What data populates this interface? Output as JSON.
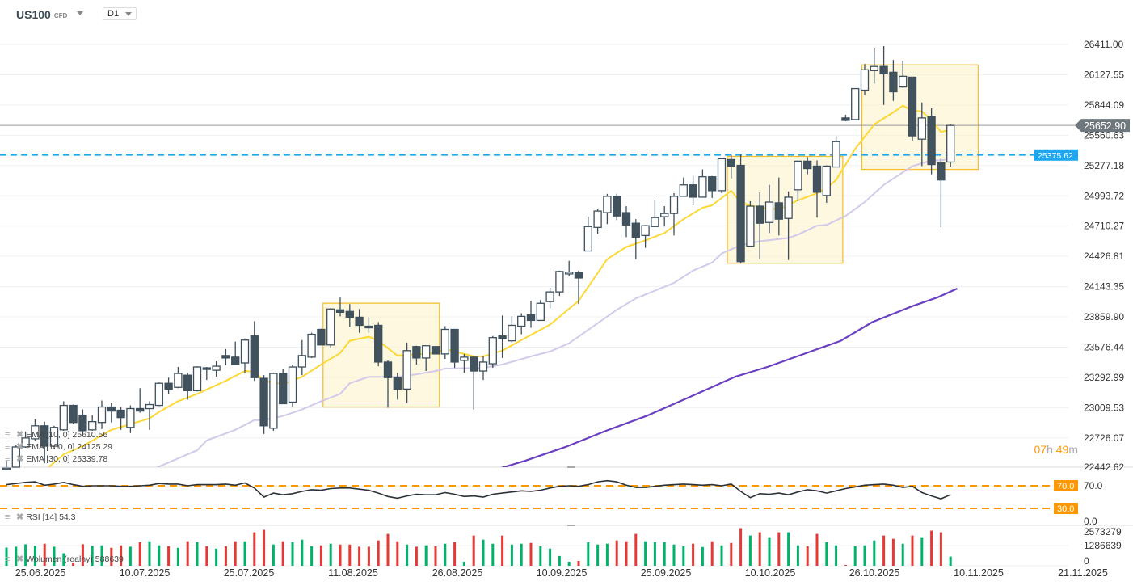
{
  "header": {
    "symbol": "US100",
    "instrument_type": "CFD",
    "timeframe": "D1"
  },
  "countdown": {
    "hours": "07",
    "hours_unit": "h",
    "minutes": "49",
    "minutes_unit": "m"
  },
  "legends": {
    "ema10": "EMA [10, 0] 25610.56",
    "ema100": "EMA [100, 0] 24125.29",
    "ema30": "EMA [30, 0] 25339.78",
    "rsi": "RSI [14] 54.3",
    "volume": "Wolumen (realny) 588639"
  },
  "colors": {
    "candle_stroke": "#3d4f5c",
    "bear_fill": "#43535e",
    "bull_fill": "#ffffff",
    "ema10": "#fdd835",
    "ema30": "#d3c9ea",
    "ema100": "#6a3fc1",
    "support_line": "#1ea7f0",
    "last_price": "#6e777c",
    "rsi_levels": "#ff9800",
    "rsi_line": "#2b3238",
    "volume_up": "#00b36b",
    "volume_down": "#e53935",
    "highlight_fill": "#fdf3c8",
    "highlight_border": "#f5c030"
  },
  "chart_data": {
    "type": "candlestick",
    "price_axis": {
      "ticks": [
        "26411.00",
        "26127.55",
        "25844.09",
        "25560.63",
        "25277.18",
        "24993.72",
        "24710.27",
        "24426.81",
        "24143.35",
        "23859.90",
        "23576.44",
        "23292.99",
        "23009.53",
        "22726.07",
        "22442.62"
      ]
    },
    "x_axis": {
      "ticks": [
        "25.06.2025",
        "10.07.2025",
        "25.07.2025",
        "11.08.2025",
        "26.08.2025",
        "10.09.2025",
        "25.09.2025",
        "10.10.2025",
        "26.10.2025",
        "10.11.2025",
        "21.11.2025"
      ]
    },
    "last_price": {
      "value": 25652.9,
      "label": "25652.90"
    },
    "support_level": {
      "value": 25375.62,
      "label": "25375.62",
      "style": "dashed"
    },
    "candles_ohlc": [
      [
        22412,
        22512,
        22397,
        22443
      ],
      [
        22420,
        22657,
        22412,
        22642
      ],
      [
        22642,
        22787,
        22634,
        22726
      ],
      [
        22718,
        22902,
        22703,
        22840
      ],
      [
        22840,
        22879,
        22489,
        22649
      ],
      [
        22649,
        22840,
        22626,
        22825
      ],
      [
        22802,
        23070,
        22794,
        23031
      ],
      [
        23031,
        23039,
        22856,
        22871
      ],
      [
        22940,
        22993,
        22749,
        22794
      ],
      [
        22802,
        22940,
        22794,
        22879
      ],
      [
        22871,
        23077,
        22810,
        23016
      ],
      [
        23016,
        23054,
        22871,
        22978
      ],
      [
        22986,
        23016,
        22802,
        22917
      ],
      [
        22825,
        23031,
        22772,
        23001
      ],
      [
        23001,
        23192,
        22963,
        22978
      ],
      [
        23001,
        23070,
        22802,
        23039
      ],
      [
        23031,
        23246,
        23024,
        23238
      ],
      [
        23238,
        23291,
        23139,
        23184
      ],
      [
        23200,
        23391,
        23192,
        23330
      ],
      [
        23314,
        23337,
        23085,
        23169
      ],
      [
        23169,
        23398,
        23161,
        23391
      ],
      [
        23383,
        23391,
        23269,
        23368
      ],
      [
        23360,
        23444,
        23299,
        23398
      ],
      [
        23498,
        23559,
        23406,
        23475
      ],
      [
        23483,
        23628,
        23414,
        23414
      ],
      [
        23429,
        23658,
        23330,
        23643
      ],
      [
        23681,
        23819,
        23261,
        23291
      ],
      [
        23284,
        23314,
        22764,
        22840
      ],
      [
        22817,
        23337,
        22794,
        23330
      ],
      [
        23330,
        23376,
        23047,
        23047
      ],
      [
        23062,
        23414,
        23016,
        23391
      ],
      [
        23391,
        23643,
        23314,
        23498
      ],
      [
        23483,
        23712,
        23475,
        23697
      ],
      [
        23743,
        23750,
        23597,
        23597
      ],
      [
        23597,
        23941,
        23567,
        23934
      ],
      [
        23926,
        24041,
        23865,
        23903
      ],
      [
        23911,
        23980,
        23766,
        23857
      ],
      [
        23857,
        23934,
        23712,
        23781
      ],
      [
        23773,
        23857,
        23712,
        23758
      ],
      [
        23781,
        23811,
        23398,
        23437
      ],
      [
        23437,
        23452,
        23009,
        23291
      ],
      [
        23291,
        23337,
        23085,
        23184
      ],
      [
        23184,
        23620,
        23054,
        23544
      ],
      [
        23582,
        23590,
        23414,
        23475
      ],
      [
        23475,
        23590,
        23353,
        23590
      ],
      [
        23582,
        23582,
        23513,
        23513
      ],
      [
        23513,
        23773,
        23467,
        23743
      ],
      [
        23743,
        23743,
        23383,
        23437
      ],
      [
        23452,
        23513,
        23337,
        23483
      ],
      [
        23483,
        23490,
        22993,
        23353
      ],
      [
        23353,
        23490,
        23269,
        23437
      ],
      [
        23421,
        23681,
        23383,
        23666
      ],
      [
        23681,
        23873,
        23475,
        23658
      ],
      [
        23636,
        23865,
        23620,
        23781
      ],
      [
        23773,
        23895,
        23697,
        23865
      ],
      [
        23880,
        24010,
        23758,
        23827
      ],
      [
        23827,
        24018,
        23827,
        23987
      ],
      [
        24003,
        24133,
        23941,
        24094
      ],
      [
        24094,
        24293,
        24056,
        24285
      ],
      [
        24262,
        24385,
        24240,
        24278
      ],
      [
        24278,
        24293,
        23980,
        24224
      ],
      [
        24477,
        24798,
        24477,
        24706
      ],
      [
        24698,
        24867,
        24637,
        24851
      ],
      [
        24836,
        25012,
        24729,
        24989
      ],
      [
        24989,
        25012,
        24767,
        24805
      ],
      [
        24836,
        24897,
        24607,
        24721
      ],
      [
        24737,
        24775,
        24400,
        24607
      ],
      [
        24622,
        24721,
        24507,
        24714
      ],
      [
        24706,
        24958,
        24706,
        24790
      ],
      [
        24798,
        24897,
        24706,
        24828
      ],
      [
        24828,
        25019,
        24622,
        24989
      ],
      [
        24989,
        25165,
        24989,
        25096
      ],
      [
        25096,
        25180,
        24905,
        24981
      ],
      [
        24981,
        25241,
        24981,
        25172
      ],
      [
        25172,
        25180,
        24974,
        25042
      ],
      [
        25042,
        25348,
        25019,
        25341
      ],
      [
        25333,
        25379,
        25157,
        25272
      ],
      [
        25279,
        25379,
        24362,
        24377
      ],
      [
        24522,
        24943,
        24522,
        24897
      ],
      [
        24897,
        25027,
        24400,
        24737
      ],
      [
        24744,
        25096,
        24645,
        24935
      ],
      [
        24928,
        25165,
        24622,
        24775
      ],
      [
        24782,
        25035,
        24392,
        24981
      ],
      [
        25050,
        25325,
        24943,
        25318
      ],
      [
        25318,
        25356,
        25195,
        25249
      ],
      [
        25272,
        25325,
        24790,
        25027
      ],
      [
        24997,
        25279,
        24928,
        25272
      ],
      [
        25264,
        25555,
        25264,
        25501
      ],
      [
        25723,
        25753,
        25692,
        25700
      ],
      [
        25708,
        25998,
        25708,
        25998
      ],
      [
        25983,
        26228,
        25937,
        26174
      ],
      [
        26166,
        26373,
        26044,
        26205
      ],
      [
        26205,
        26396,
        25845,
        26136
      ],
      [
        26151,
        26266,
        25883,
        25968
      ],
      [
        26013,
        26258,
        26006,
        26113
      ],
      [
        26105,
        26105,
        25509,
        25555
      ],
      [
        25524,
        25868,
        25272,
        25723
      ],
      [
        25738,
        25815,
        25195,
        25287
      ],
      [
        25302,
        25341,
        24698,
        25142
      ],
      [
        25310,
        25662,
        25264,
        25652.9
      ]
    ],
    "ema_lines": [
      {
        "name": "EMA [10, 0]",
        "points": [
          [
            4,
            22420
          ],
          [
            6,
            22572
          ],
          [
            8,
            22649
          ],
          [
            11,
            22802
          ],
          [
            15,
            22909
          ],
          [
            16,
            22970
          ],
          [
            18,
            23070
          ],
          [
            20,
            23139
          ],
          [
            23,
            23261
          ],
          [
            25,
            23353
          ],
          [
            26,
            23345
          ],
          [
            27,
            23261
          ],
          [
            29,
            23230
          ],
          [
            31,
            23299
          ],
          [
            33,
            23414
          ],
          [
            35,
            23521
          ],
          [
            36,
            23636
          ],
          [
            38,
            23674
          ],
          [
            39,
            23636
          ],
          [
            41,
            23498
          ],
          [
            45,
            23521
          ],
          [
            46,
            23559
          ],
          [
            49,
            23490
          ],
          [
            50,
            23490
          ],
          [
            52,
            23544
          ],
          [
            54,
            23643
          ],
          [
            57,
            23788
          ],
          [
            60,
            24010
          ],
          [
            63,
            24400
          ],
          [
            65,
            24515
          ],
          [
            67,
            24576
          ],
          [
            69,
            24645
          ],
          [
            71,
            24775
          ],
          [
            73,
            24882
          ],
          [
            74,
            24905
          ],
          [
            76,
            25042
          ],
          [
            77,
            24928
          ],
          [
            79,
            24882
          ],
          [
            81,
            24867
          ],
          [
            83,
            24951
          ],
          [
            85,
            25019
          ],
          [
            86,
            25065
          ],
          [
            87,
            25142
          ],
          [
            89,
            25432
          ],
          [
            91,
            25662
          ],
          [
            93,
            25776
          ],
          [
            94,
            25838
          ],
          [
            95,
            25792
          ],
          [
            96,
            25784
          ],
          [
            97,
            25700
          ],
          [
            98,
            25593
          ],
          [
            99,
            25610.56
          ]
        ]
      },
      {
        "name": "EMA [30, 0]",
        "points": [
          [
            15,
            22420
          ],
          [
            20,
            22611
          ],
          [
            21,
            22703
          ],
          [
            24,
            22802
          ],
          [
            26,
            22894
          ],
          [
            27,
            22894
          ],
          [
            29,
            22932
          ],
          [
            31,
            22993
          ],
          [
            33,
            23070
          ],
          [
            35,
            23139
          ],
          [
            36,
            23238
          ],
          [
            38,
            23299
          ],
          [
            41,
            23299
          ],
          [
            43,
            23322
          ],
          [
            45,
            23353
          ],
          [
            46,
            23376
          ],
          [
            50,
            23383
          ],
          [
            52,
            23414
          ],
          [
            55,
            23490
          ],
          [
            57,
            23536
          ],
          [
            59,
            23613
          ],
          [
            64,
            23926
          ],
          [
            66,
            24033
          ],
          [
            70,
            24178
          ],
          [
            72,
            24293
          ],
          [
            74,
            24369
          ],
          [
            75,
            24454
          ],
          [
            77,
            24530
          ],
          [
            79,
            24568
          ],
          [
            82,
            24599
          ],
          [
            83,
            24630
          ],
          [
            85,
            24714
          ],
          [
            86,
            24721
          ],
          [
            88,
            24805
          ],
          [
            90,
            24935
          ],
          [
            92,
            25096
          ],
          [
            95,
            25272
          ],
          [
            97,
            25325
          ],
          [
            98,
            25325
          ],
          [
            99,
            25339.78
          ]
        ]
      },
      {
        "name": "EMA [100, 0]",
        "points": [
          [
            50.6,
            22412
          ],
          [
            54.4,
            22512
          ],
          [
            58.6,
            22641
          ],
          [
            62.9,
            22794
          ],
          [
            67.1,
            22932
          ],
          [
            71.4,
            23100
          ],
          [
            76.4,
            23299
          ],
          [
            79.8,
            23391
          ],
          [
            84.1,
            23528
          ],
          [
            87.5,
            23636
          ],
          [
            90.8,
            23811
          ],
          [
            95.1,
            23964
          ],
          [
            97.6,
            24041
          ],
          [
            99.7,
            24125.29
          ]
        ]
      }
    ],
    "highlight_boxes": [
      {
        "from_candle": 33.2,
        "to_candle": 45.4,
        "price_high": 23988,
        "price_low": 23016
      },
      {
        "from_candle": 75.6,
        "to_candle": 87.7,
        "price_high": 25363,
        "price_low": 24362
      },
      {
        "from_candle": 89.7,
        "to_candle": 101.9,
        "price_high": 26220,
        "price_low": 25241
      }
    ],
    "rsi": {
      "period": 14,
      "levels": [
        {
          "value": 70,
          "label": "70.0"
        },
        {
          "value": 30,
          "label": "30.0"
        }
      ],
      "axis_ticks": [
        "70.0",
        "0.0"
      ],
      "values": [
        72,
        74,
        76,
        77,
        71,
        73,
        76,
        72,
        69,
        70,
        70,
        70,
        69,
        69,
        70,
        71,
        74,
        73,
        73,
        70,
        72,
        72,
        72,
        73,
        71,
        75,
        66,
        50,
        57,
        54,
        56,
        60,
        63,
        62,
        65,
        66,
        66,
        64,
        62,
        57,
        51,
        48,
        52,
        55,
        54,
        54,
        58,
        55,
        51,
        52,
        50,
        55,
        57,
        59,
        61,
        60,
        62,
        66,
        69,
        70,
        69,
        72,
        77,
        79,
        77,
        71,
        67,
        67,
        69,
        71,
        72,
        73,
        72,
        71,
        72,
        70,
        73,
        60,
        49,
        56,
        55,
        57,
        54,
        59,
        63,
        61,
        57,
        61,
        65,
        68,
        71,
        72,
        73,
        71,
        67,
        69,
        58,
        52,
        47,
        54.3
      ]
    },
    "volume": {
      "axis_ticks": [
        "2573279",
        "1286639",
        "0"
      ],
      "values": [
        1161000,
        1213000,
        1369000,
        1265000,
        1404000,
        1213000,
        797000,
        208000,
        1369000,
        1265000,
        1300000,
        1144000,
        1300000,
        1213000,
        1508000,
        1560000,
        1300000,
        1248000,
        1144000,
        1560000,
        1508000,
        1248000,
        1092000,
        1248000,
        1560000,
        1560000,
        2132000,
        2288000,
        1352000,
        1560000,
        1508000,
        1664000,
        1248000,
        1300000,
        1404000,
        1352000,
        1352000,
        1213000,
        1213000,
        1612000,
        2028000,
        1560000,
        1352000,
        1213000,
        1300000,
        1248000,
        1404000,
        1508000,
        260000,
        1924000,
        1664000,
        1404000,
        1924000,
        1352000,
        1404000,
        1456000,
        1248000,
        1092000,
        624000,
        260000,
        312000,
        1508000,
        1352000,
        1404000,
        1612000,
        1560000,
        2028000,
        1560000,
        1508000,
        1508000,
        1352000,
        1248000,
        1404000,
        1196000,
        1560000,
        1300000,
        1456000,
        2392000,
        1924000,
        2132000,
        1820000,
        2132000,
        2132000,
        1300000,
        1248000,
        2028000,
        1508000,
        1300000,
        52000,
        1248000,
        1300000,
        1612000,
        1924000,
        1716000,
        1404000,
        1924000,
        1820000,
        2236000,
        2132000,
        588639
      ]
    }
  }
}
